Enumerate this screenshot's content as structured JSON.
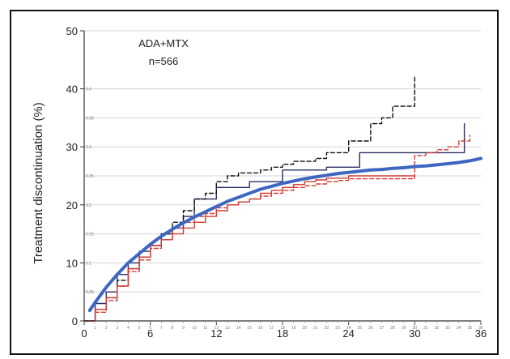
{
  "chart_data": {
    "type": "line",
    "title": "",
    "annotation": [
      "ADA+MTX",
      "n=566"
    ],
    "xlabel": "",
    "ylabel": "Treatment discontinuation (%)",
    "xlim": [
      0,
      36
    ],
    "ylim": [
      0,
      50
    ],
    "x_ticks": [
      0,
      6,
      12,
      18,
      24,
      30,
      36
    ],
    "y_ticks": [
      0,
      10,
      20,
      30,
      40,
      50
    ],
    "y_minor_labels": [
      {
        "y": 5,
        "label": "0.05"
      },
      {
        "y": 10,
        "label": "0.1"
      },
      {
        "y": 15,
        "label": "0.15"
      },
      {
        "y": 20,
        "label": "0.2"
      },
      {
        "y": 25,
        "label": "0.25"
      },
      {
        "y": 30,
        "label": "0.3"
      },
      {
        "y": 35,
        "label": "0.35"
      },
      {
        "y": 40,
        "label": "0.4"
      }
    ],
    "x_minor_labels": [
      "1",
      "2",
      "3",
      "4",
      "5",
      "6",
      "7",
      "8",
      "9",
      "10",
      "11",
      "12",
      "13",
      "14",
      "15",
      "16",
      "17",
      "18",
      "19",
      "20",
      "21",
      "22",
      "23",
      "24",
      "25",
      "26",
      "27",
      "28",
      "29",
      "30",
      "31",
      "32",
      "33",
      "34",
      "35",
      "36"
    ],
    "grid": true,
    "series": [
      {
        "color": "#3d67c0",
        "style": "smooth",
        "width": 4,
        "x": [
          0.5,
          1,
          2,
          3,
          4,
          5,
          6,
          7,
          8,
          9,
          10,
          11,
          12,
          13,
          14,
          15,
          16,
          17,
          18,
          19,
          20,
          21,
          22,
          23,
          24,
          25,
          26,
          27,
          28,
          29,
          30,
          31,
          32,
          33,
          34,
          35,
          36
        ],
        "y": [
          1.8,
          3.2,
          5.8,
          8,
          10,
          11.6,
          13.2,
          14.6,
          15.8,
          16.9,
          17.9,
          18.8,
          19.7,
          20.6,
          21.3,
          22,
          22.7,
          23.2,
          23.7,
          24.1,
          24.5,
          24.8,
          25.1,
          25.4,
          25.6,
          25.8,
          26,
          26.1,
          26.3,
          26.4,
          26.6,
          26.7,
          26.9,
          27.1,
          27.3,
          27.6,
          28
        ]
      },
      {
        "color": "#2b2f63",
        "style": "step",
        "width": 1.4,
        "x": [
          0,
          1,
          2,
          3,
          4,
          5,
          6,
          7,
          8,
          9,
          10,
          12,
          15,
          18,
          22,
          25,
          34.5
        ],
        "y": [
          0,
          3,
          5,
          8,
          10,
          12,
          13,
          15,
          16,
          18,
          21,
          23,
          24,
          26,
          26.5,
          29,
          34
        ]
      },
      {
        "color": "#111111",
        "style": "step-dashed",
        "width": 1.4,
        "x": [
          0,
          1,
          2,
          3,
          4,
          5,
          6,
          7,
          8,
          9,
          10,
          11,
          12,
          13,
          14,
          16,
          17,
          18,
          19,
          21,
          22,
          24,
          26,
          27,
          28,
          30
        ],
        "y": [
          0,
          2,
          4,
          7,
          9,
          11,
          13,
          15,
          17,
          19,
          21,
          22,
          24,
          25,
          25.5,
          26,
          26.5,
          27,
          27.5,
          28,
          29,
          31,
          34,
          35,
          37,
          42
        ]
      },
      {
        "color": "#d23a32",
        "style": "step",
        "width": 1.4,
        "x": [
          0,
          1,
          2,
          3,
          4,
          5,
          6,
          7,
          8,
          9,
          10,
          11,
          12,
          13,
          14,
          15,
          16,
          17,
          18,
          19,
          20,
          21,
          22,
          24,
          30
        ],
        "y": [
          0,
          2,
          4,
          6,
          9,
          11,
          13,
          14,
          15,
          16,
          17,
          18,
          19,
          20,
          20.5,
          21,
          22,
          22.5,
          23,
          23.5,
          24,
          24.3,
          24.6,
          25,
          25
        ]
      },
      {
        "color": "#d23a32",
        "style": "step-dashed",
        "width": 1.4,
        "x": [
          0,
          1,
          2,
          3,
          4,
          5,
          6,
          7,
          8,
          9,
          10,
          11,
          12,
          13,
          14,
          15,
          16,
          17,
          18,
          19,
          20,
          21,
          22,
          23,
          24,
          30,
          31,
          32,
          33,
          34,
          35
        ],
        "y": [
          0,
          1.5,
          3.5,
          6,
          8.5,
          10.5,
          12.5,
          14,
          16,
          17,
          18,
          18.5,
          19.5,
          20,
          20.5,
          21,
          21.5,
          22,
          22.5,
          23,
          23.3,
          23.6,
          24,
          24.2,
          24.5,
          28.5,
          29,
          29.5,
          30,
          31,
          32
        ]
      }
    ]
  }
}
